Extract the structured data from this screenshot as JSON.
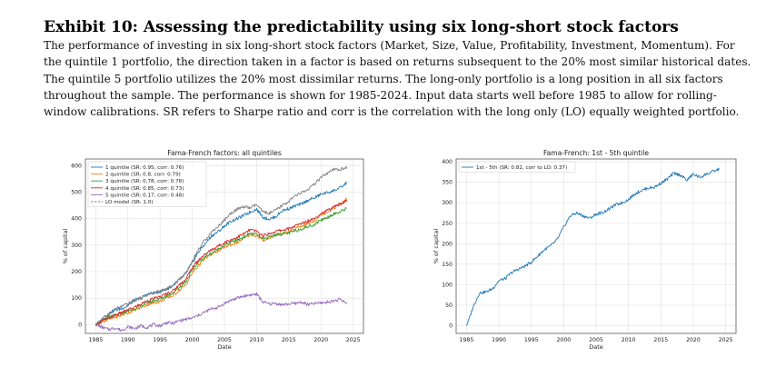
{
  "header": {
    "title": "Exhibit 10: Assessing the predictability using six long-short stock factors",
    "description": "The performance of investing in six long-short stock factors (Market, Size, Value, Profitability, Investment, Momentum). For the quintile 1 portfolio, the direction taken in a factor is based on returns subsequent to the 20% most similar historical dates. The quintile 5 portfolio utilizes the 20% most dissimilar returns. The long-only portfolio is a long position in all six factors throughout the sample. The performance is shown for 1985-2024. Input data starts well before 1985 to allow for rolling-window calibrations. SR refers to Sharpe ratio and corr is the correlation with the long only (LO) equally weighted portfolio."
  },
  "chart_data": [
    {
      "type": "line",
      "title": "Fama-French factors: all quintiles",
      "xlabel": "Date",
      "ylabel": "% of capital",
      "xlim": [
        1983.4,
        2026.6
      ],
      "ylim": [
        -33,
        625
      ],
      "xticks": [
        "1985",
        "1990",
        "1995",
        "2000",
        "2005",
        "2010",
        "2015",
        "2020",
        "2025"
      ],
      "yticks": [
        "0",
        "100",
        "200",
        "300",
        "400",
        "500",
        "600"
      ],
      "grid": true,
      "legend_position": "upper-left",
      "series": [
        {
          "name": "1 quintile (SR: 0.95, corr: 0.76)",
          "color": "#1f77b4",
          "dash": "solid",
          "x": [
            1985,
            1986,
            1987,
            1988,
            1989,
            1990,
            1991,
            1992,
            1993,
            1994,
            1995,
            1996,
            1997,
            1998,
            1999,
            2000,
            2001,
            2002,
            2003,
            2004,
            2005,
            2006,
            2007,
            2008,
            2009,
            2010,
            2011,
            2012,
            2013,
            2014,
            2015,
            2016,
            2017,
            2018,
            2019,
            2020,
            2021,
            2022,
            2023,
            2024
          ],
          "y": [
            0,
            18,
            42,
            55,
            60,
            72,
            92,
            100,
            115,
            120,
            125,
            133,
            148,
            170,
            192,
            232,
            275,
            305,
            335,
            350,
            372,
            390,
            400,
            412,
            425,
            436,
            405,
            398,
            408,
            430,
            438,
            448,
            455,
            470,
            478,
            492,
            498,
            506,
            516,
            535
          ]
        },
        {
          "name": "2 quintile (SR: 0.8, corr: 0.79)",
          "color": "#ff7f0e",
          "dash": "solid",
          "x": [
            1985,
            1987,
            1989,
            1991,
            1993,
            1995,
            1997,
            1999,
            2000,
            2001,
            2002,
            2003,
            2005,
            2007,
            2008,
            2009,
            2010,
            2011,
            2013,
            2015,
            2017,
            2019,
            2020,
            2021,
            2022,
            2023,
            2024
          ],
          "y": [
            0,
            20,
            35,
            55,
            75,
            88,
            110,
            150,
            195,
            225,
            250,
            265,
            292,
            310,
            325,
            340,
            335,
            318,
            338,
            350,
            372,
            392,
            415,
            425,
            440,
            455,
            475
          ]
        },
        {
          "name": "3 quintile (SR: 0.78, corr: 0.78)",
          "color": "#2ca02c",
          "dash": "solid",
          "x": [
            1985,
            1987,
            1989,
            1991,
            1993,
            1995,
            1997,
            1999,
            2000,
            2001,
            2002,
            2003,
            2005,
            2007,
            2008,
            2009,
            2010,
            2011,
            2013,
            2015,
            2017,
            2019,
            2020,
            2021,
            2022,
            2023,
            2024
          ],
          "y": [
            0,
            28,
            42,
            60,
            82,
            96,
            120,
            162,
            205,
            238,
            255,
            270,
            300,
            320,
            330,
            345,
            340,
            322,
            340,
            345,
            362,
            378,
            395,
            405,
            418,
            425,
            440
          ]
        },
        {
          "name": "4 quintile (SR: 0.85, corr: 0.73)",
          "color": "#d62728",
          "dash": "solid",
          "x": [
            1985,
            1987,
            1989,
            1991,
            1993,
            1995,
            1997,
            1999,
            2000,
            2001,
            2002,
            2003,
            2005,
            2007,
            2008,
            2009,
            2010,
            2011,
            2013,
            2015,
            2017,
            2019,
            2020,
            2021,
            2022,
            2023,
            2024
          ],
          "y": [
            0,
            25,
            45,
            65,
            90,
            105,
            128,
            172,
            215,
            245,
            265,
            282,
            310,
            330,
            342,
            358,
            352,
            335,
            352,
            362,
            382,
            402,
            420,
            430,
            445,
            455,
            468
          ]
        },
        {
          "name": "5 quintile (SR: 0.17, corr: 0.48)",
          "color": "#9467bd",
          "dash": "solid",
          "x": [
            1985,
            1986,
            1987,
            1988,
            1989,
            1990,
            1991,
            1992,
            1993,
            1994,
            1995,
            1996,
            1997,
            1998,
            1999,
            2000,
            2001,
            2002,
            2003,
            2004,
            2005,
            2006,
            2007,
            2008,
            2009,
            2010,
            2011,
            2012,
            2013,
            2014,
            2015,
            2016,
            2017,
            2018,
            2019,
            2020,
            2021,
            2022,
            2023,
            2024
          ],
          "y": [
            0,
            -10,
            -18,
            -12,
            -22,
            -8,
            -15,
            -5,
            -10,
            0,
            -5,
            8,
            5,
            15,
            20,
            25,
            35,
            48,
            60,
            65,
            80,
            92,
            100,
            108,
            112,
            115,
            85,
            78,
            80,
            75,
            78,
            80,
            85,
            75,
            80,
            82,
            85,
            90,
            95,
            80
          ]
        },
        {
          "name": "LO model (SR: 1.0)",
          "color": "#7f7f7f",
          "dash": "dashed",
          "legend_only": true,
          "x": [],
          "y": []
        },
        {
          "name": "",
          "color": "#7f7f7f",
          "dash": "solid",
          "x": [
            1985,
            1986,
            1987,
            1988,
            1989,
            1990,
            1991,
            1992,
            1993,
            1994,
            1995,
            1996,
            1997,
            1998,
            1999,
            2000,
            2001,
            2002,
            2003,
            2004,
            2005,
            2006,
            2007,
            2008,
            2009,
            2010,
            2011,
            2012,
            2013,
            2014,
            2015,
            2016,
            2017,
            2018,
            2019,
            2020,
            2021,
            2022,
            2023,
            2024
          ],
          "y": [
            0,
            22,
            40,
            58,
            68,
            78,
            92,
            100,
            112,
            118,
            125,
            135,
            148,
            170,
            195,
            240,
            285,
            320,
            350,
            370,
            395,
            420,
            435,
            445,
            440,
            452,
            425,
            420,
            432,
            450,
            465,
            485,
            498,
            510,
            530,
            555,
            570,
            585,
            585,
            595
          ]
        }
      ]
    },
    {
      "type": "line",
      "title": "Fama-French: 1st - 5th quintile",
      "xlabel": "Date",
      "ylabel": "% of capital",
      "xlim": [
        1983.4,
        2026.6
      ],
      "ylim": [
        -19,
        407
      ],
      "xticks": [
        "1985",
        "1990",
        "1995",
        "2000",
        "2005",
        "2010",
        "2015",
        "2020",
        "2025"
      ],
      "yticks": [
        "0",
        "50",
        "100",
        "150",
        "200",
        "250",
        "300",
        "350",
        "400"
      ],
      "grid": true,
      "legend_position": "upper-left",
      "series": [
        {
          "name": "1st - 5th (SR: 0.82, corr to LO: 0.37)",
          "color": "#1f77b4",
          "dash": "solid",
          "x": [
            1985,
            1985.5,
            1986,
            1987,
            1988,
            1989,
            1990,
            1991,
            1992,
            1993,
            1994,
            1995,
            1996,
            1997,
            1998,
            1999,
            2000,
            2001,
            2002,
            2003,
            2004,
            2005,
            2006,
            2007,
            2008,
            2009,
            2010,
            2011,
            2012,
            2013,
            2014,
            2015,
            2016,
            2017,
            2018,
            2019,
            2020,
            2021,
            2022,
            2023,
            2024
          ],
          "y": [
            0,
            20,
            45,
            80,
            82,
            90,
            110,
            115,
            130,
            138,
            145,
            155,
            170,
            185,
            195,
            210,
            240,
            268,
            275,
            268,
            262,
            272,
            276,
            285,
            295,
            300,
            308,
            322,
            330,
            336,
            338,
            348,
            358,
            372,
            368,
            355,
            370,
            362,
            370,
            376,
            382
          ]
        }
      ]
    }
  ]
}
